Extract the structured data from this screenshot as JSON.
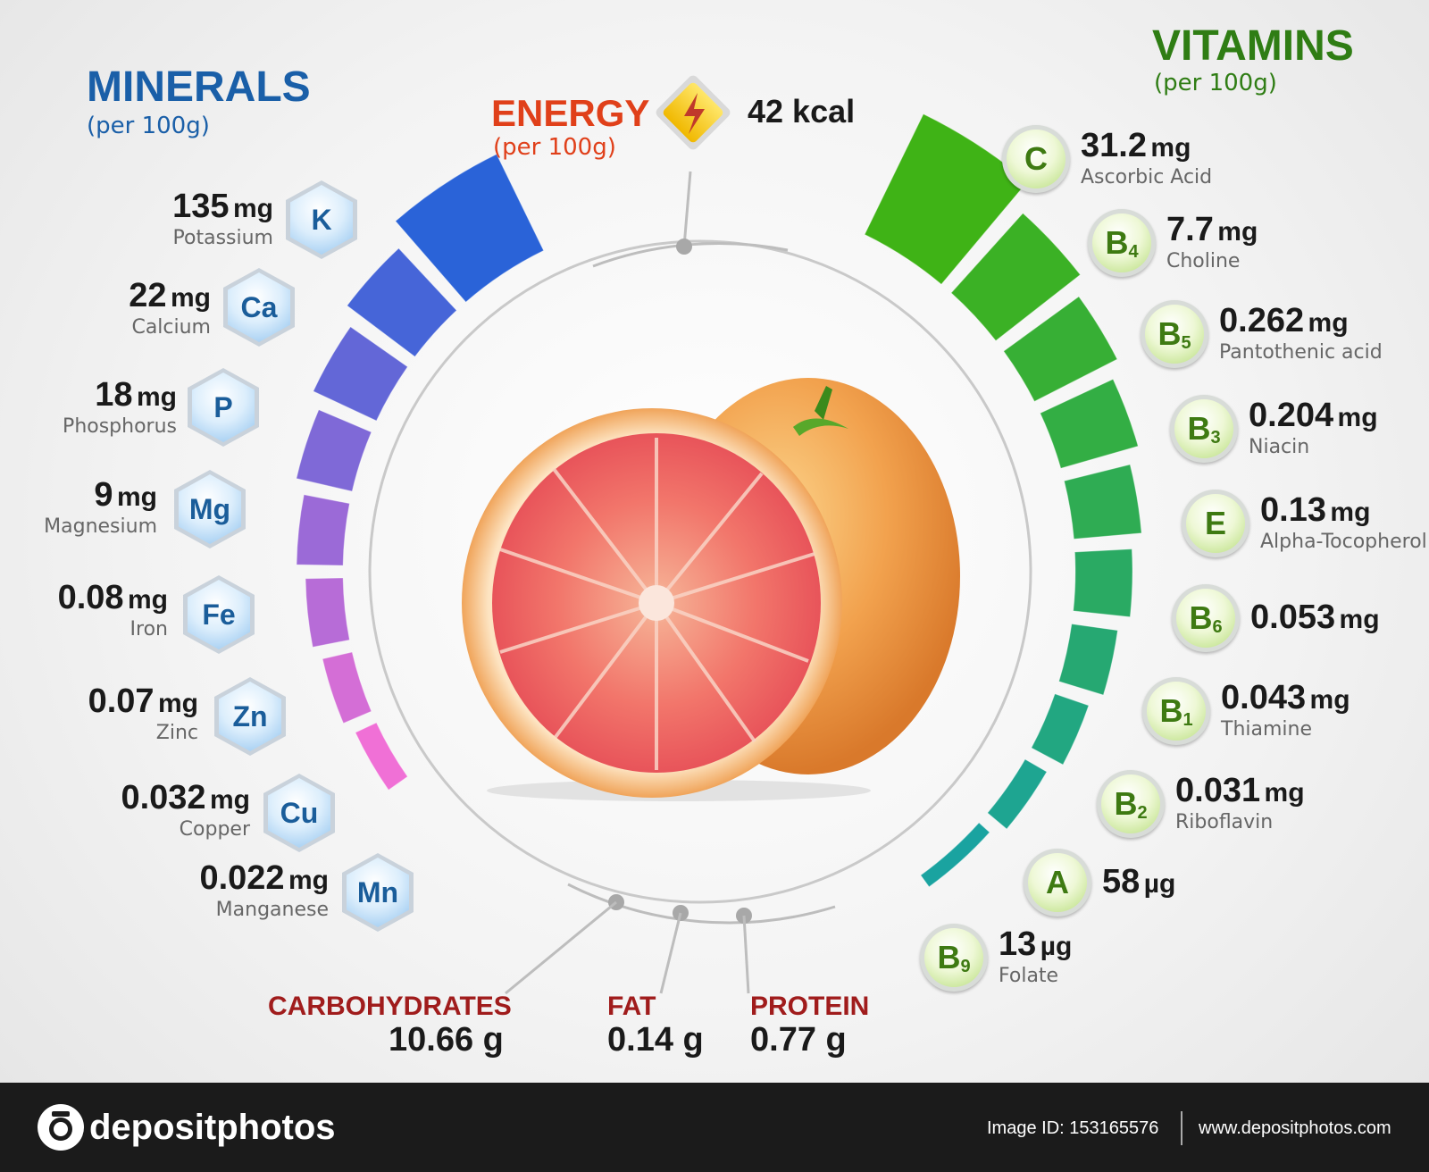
{
  "energy": {
    "title": "ENERGY",
    "per": "(per 100g)",
    "value": "42 kcal"
  },
  "minerals": {
    "title": "MINERALS",
    "per": "(per 100g)",
    "items": [
      {
        "symbol": "K",
        "num": "135",
        "unit": "mg",
        "name": "Potassium"
      },
      {
        "symbol": "Ca",
        "num": "22",
        "unit": "mg",
        "name": "Calcium"
      },
      {
        "symbol": "P",
        "num": "18",
        "unit": "mg",
        "name": "Phosphorus"
      },
      {
        "symbol": "Mg",
        "num": "9",
        "unit": "mg",
        "name": "Magnesium"
      },
      {
        "symbol": "Fe",
        "num": "0.08",
        "unit": "mg",
        "name": "Iron"
      },
      {
        "symbol": "Zn",
        "num": "0.07",
        "unit": "mg",
        "name": "Zinc"
      },
      {
        "symbol": "Cu",
        "num": "0.032",
        "unit": "mg",
        "name": "Copper"
      },
      {
        "symbol": "Mn",
        "num": "0.022",
        "unit": "mg",
        "name": "Manganese"
      }
    ]
  },
  "vitamins": {
    "title": "VITAMINS",
    "per": "(per 100g)",
    "items": [
      {
        "letter": "C",
        "sub": "",
        "num": "31.2",
        "unit": "mg",
        "name": "Ascorbic Acid"
      },
      {
        "letter": "B",
        "sub": "4",
        "num": "7.7",
        "unit": "mg",
        "name": "Choline"
      },
      {
        "letter": "B",
        "sub": "5",
        "num": "0.262",
        "unit": "mg",
        "name": "Pantothenic acid"
      },
      {
        "letter": "B",
        "sub": "3",
        "num": "0.204",
        "unit": "mg",
        "name": "Niacin"
      },
      {
        "letter": "E",
        "sub": "",
        "num": "0.13",
        "unit": "mg",
        "name": "Alpha-Tocopherol"
      },
      {
        "letter": "B",
        "sub": "6",
        "num": "0.053",
        "unit": "mg",
        "name": ""
      },
      {
        "letter": "B",
        "sub": "1",
        "num": "0.043",
        "unit": "mg",
        "name": "Thiamine"
      },
      {
        "letter": "B",
        "sub": "2",
        "num": "0.031",
        "unit": "mg",
        "name": "Riboflavin"
      },
      {
        "letter": "A",
        "sub": "",
        "num": "58",
        "unit": "µg",
        "name": ""
      },
      {
        "letter": "B",
        "sub": "9",
        "num": "13",
        "unit": "µg",
        "name": "Folate"
      }
    ]
  },
  "macros": {
    "carbohydrates": {
      "label": "CARBOHYDRATES",
      "value": "10.66 g"
    },
    "fat": {
      "label": "FAT",
      "value": "0.14 g"
    },
    "protein": {
      "label": "PROTEIN",
      "value": "0.77 g"
    }
  },
  "footer": {
    "brand": "depositphotos",
    "image_id": "Image ID: 153165576",
    "url": "www.depositphotos.com"
  },
  "colors": {
    "minerals_title": "#1a5fa8",
    "vitamins_title": "#2f7d14",
    "energy_title": "#e0401a",
    "macro_label": "#a01c1c",
    "mineral_arc_top": "#2a63d8",
    "mineral_arc_bottom": "#f070d6",
    "vitamin_arc_top": "#3fb316",
    "vitamin_arc_bottom": "#1aa3a0"
  }
}
